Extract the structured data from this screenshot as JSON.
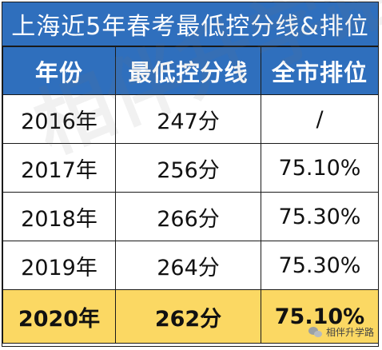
{
  "title": "上海近5年春考最低控分线&排位",
  "columns": [
    "年份",
    "最低控分线",
    "全市排位"
  ],
  "rows": [
    [
      "2016年",
      "247分",
      "/"
    ],
    [
      "2017年",
      "256分",
      "75.10%"
    ],
    [
      "2018年",
      "266分",
      "75.30%"
    ],
    [
      "2019年",
      "264分",
      "75.30%"
    ],
    [
      "2020年",
      "262分",
      "75.10%"
    ]
  ],
  "highlight_row": 4,
  "watermark": "相伴升学路",
  "brand": "相伴升学路",
  "colors": {
    "header": "#2f6fbd",
    "highlight": "#fbd863"
  }
}
